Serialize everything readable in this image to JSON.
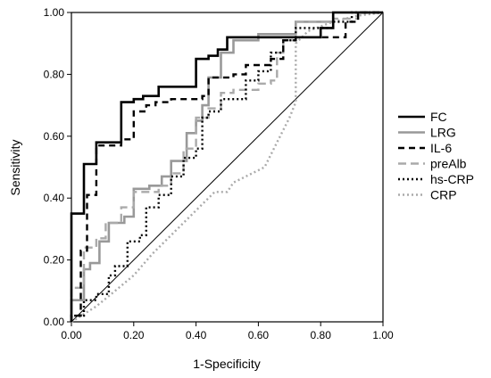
{
  "chart_data": {
    "type": "line",
    "title": "",
    "xlabel": "1-Specificity",
    "ylabel": "Sensitivity",
    "xlim": [
      0,
      1
    ],
    "ylim": [
      0,
      1
    ],
    "xticks": [
      "0.00",
      "0.20",
      "0.40",
      "0.60",
      "0.80",
      "1.00"
    ],
    "yticks": [
      "0.00",
      "0.20",
      "0.40",
      "0.60",
      "0.80",
      "1.00"
    ],
    "grid": false,
    "legend_position": "right",
    "reference_line": [
      [
        0,
        0
      ],
      [
        1,
        1
      ]
    ],
    "series": [
      {
        "name": "FC",
        "color": "#000000",
        "dash": "solid",
        "width": 2.6,
        "points": [
          [
            0,
            0
          ],
          [
            0,
            0.35
          ],
          [
            0.04,
            0.35
          ],
          [
            0.04,
            0.51
          ],
          [
            0.08,
            0.51
          ],
          [
            0.08,
            0.58
          ],
          [
            0.16,
            0.58
          ],
          [
            0.16,
            0.71
          ],
          [
            0.2,
            0.71
          ],
          [
            0.2,
            0.72
          ],
          [
            0.23,
            0.72
          ],
          [
            0.23,
            0.73
          ],
          [
            0.28,
            0.73
          ],
          [
            0.28,
            0.76
          ],
          [
            0.4,
            0.76
          ],
          [
            0.4,
            0.85
          ],
          [
            0.44,
            0.85
          ],
          [
            0.44,
            0.86
          ],
          [
            0.47,
            0.86
          ],
          [
            0.47,
            0.88
          ],
          [
            0.5,
            0.88
          ],
          [
            0.5,
            0.92
          ],
          [
            0.8,
            0.92
          ],
          [
            0.8,
            0.95
          ],
          [
            0.84,
            0.95
          ],
          [
            0.84,
            1.0
          ],
          [
            1,
            1
          ]
        ]
      },
      {
        "name": "LRG",
        "color": "#999999",
        "dash": "solid",
        "width": 2.6,
        "points": [
          [
            0,
            0
          ],
          [
            0,
            0.07
          ],
          [
            0.04,
            0.07
          ],
          [
            0.04,
            0.17
          ],
          [
            0.06,
            0.17
          ],
          [
            0.06,
            0.19
          ],
          [
            0.09,
            0.19
          ],
          [
            0.09,
            0.26
          ],
          [
            0.12,
            0.26
          ],
          [
            0.12,
            0.32
          ],
          [
            0.17,
            0.32
          ],
          [
            0.17,
            0.34
          ],
          [
            0.2,
            0.34
          ],
          [
            0.2,
            0.43
          ],
          [
            0.25,
            0.43
          ],
          [
            0.25,
            0.44
          ],
          [
            0.29,
            0.44
          ],
          [
            0.29,
            0.47
          ],
          [
            0.32,
            0.47
          ],
          [
            0.32,
            0.52
          ],
          [
            0.37,
            0.52
          ],
          [
            0.37,
            0.61
          ],
          [
            0.4,
            0.61
          ],
          [
            0.4,
            0.65
          ],
          [
            0.42,
            0.65
          ],
          [
            0.42,
            0.7
          ],
          [
            0.44,
            0.7
          ],
          [
            0.44,
            0.79
          ],
          [
            0.48,
            0.79
          ],
          [
            0.48,
            0.87
          ],
          [
            0.52,
            0.87
          ],
          [
            0.52,
            0.91
          ],
          [
            0.6,
            0.91
          ],
          [
            0.6,
            0.93
          ],
          [
            0.72,
            0.93
          ],
          [
            0.72,
            0.97
          ],
          [
            0.84,
            0.97
          ],
          [
            0.84,
            1.0
          ],
          [
            1,
            1
          ]
        ]
      },
      {
        "name": "IL-6",
        "color": "#000000",
        "dash": "7 5",
        "width": 2.4,
        "points": [
          [
            0,
            0
          ],
          [
            0,
            0.02
          ],
          [
            0.03,
            0.02
          ],
          [
            0.03,
            0.23
          ],
          [
            0.05,
            0.23
          ],
          [
            0.05,
            0.41
          ],
          [
            0.08,
            0.41
          ],
          [
            0.08,
            0.57
          ],
          [
            0.16,
            0.57
          ],
          [
            0.16,
            0.59
          ],
          [
            0.2,
            0.59
          ],
          [
            0.2,
            0.68
          ],
          [
            0.24,
            0.68
          ],
          [
            0.24,
            0.7
          ],
          [
            0.27,
            0.7
          ],
          [
            0.27,
            0.71
          ],
          [
            0.32,
            0.71
          ],
          [
            0.32,
            0.72
          ],
          [
            0.42,
            0.72
          ],
          [
            0.42,
            0.73
          ],
          [
            0.44,
            0.73
          ],
          [
            0.44,
            0.79
          ],
          [
            0.52,
            0.79
          ],
          [
            0.52,
            0.8
          ],
          [
            0.56,
            0.8
          ],
          [
            0.56,
            0.83
          ],
          [
            0.64,
            0.83
          ],
          [
            0.64,
            0.85
          ],
          [
            0.68,
            0.85
          ],
          [
            0.68,
            0.91
          ],
          [
            0.72,
            0.91
          ],
          [
            0.72,
            0.92
          ],
          [
            0.88,
            0.92
          ],
          [
            0.88,
            0.97
          ],
          [
            0.92,
            0.97
          ],
          [
            0.92,
            1.0
          ],
          [
            1,
            1
          ]
        ]
      },
      {
        "name": "preAlb",
        "color": "#aaaaaa",
        "dash": "9 5",
        "width": 2.4,
        "points": [
          [
            0,
            0
          ],
          [
            0,
            0.11
          ],
          [
            0.04,
            0.11
          ],
          [
            0.04,
            0.24
          ],
          [
            0.08,
            0.24
          ],
          [
            0.08,
            0.27
          ],
          [
            0.11,
            0.27
          ],
          [
            0.11,
            0.32
          ],
          [
            0.16,
            0.32
          ],
          [
            0.16,
            0.37
          ],
          [
            0.2,
            0.37
          ],
          [
            0.2,
            0.42
          ],
          [
            0.28,
            0.42
          ],
          [
            0.28,
            0.44
          ],
          [
            0.32,
            0.44
          ],
          [
            0.32,
            0.48
          ],
          [
            0.36,
            0.48
          ],
          [
            0.36,
            0.56
          ],
          [
            0.4,
            0.56
          ],
          [
            0.4,
            0.66
          ],
          [
            0.44,
            0.66
          ],
          [
            0.44,
            0.69
          ],
          [
            0.48,
            0.69
          ],
          [
            0.48,
            0.74
          ],
          [
            0.52,
            0.74
          ],
          [
            0.52,
            0.75
          ],
          [
            0.6,
            0.75
          ],
          [
            0.6,
            0.77
          ],
          [
            0.64,
            0.77
          ],
          [
            0.64,
            0.78
          ],
          [
            0.66,
            0.78
          ],
          [
            0.66,
            0.87
          ],
          [
            0.68,
            0.87
          ],
          [
            0.68,
            0.91
          ],
          [
            0.72,
            0.91
          ],
          [
            0.72,
            0.97
          ],
          [
            0.84,
            0.97
          ],
          [
            0.84,
            0.98
          ],
          [
            0.92,
            0.98
          ],
          [
            0.92,
            1.0
          ],
          [
            1,
            1
          ]
        ]
      },
      {
        "name": "hs-CRP",
        "color": "#000000",
        "dash": "2 3",
        "width": 2.4,
        "points": [
          [
            0,
            0
          ],
          [
            0,
            0.02
          ],
          [
            0.04,
            0.02
          ],
          [
            0.04,
            0.07
          ],
          [
            0.08,
            0.07
          ],
          [
            0.08,
            0.09
          ],
          [
            0.12,
            0.09
          ],
          [
            0.12,
            0.15
          ],
          [
            0.14,
            0.15
          ],
          [
            0.14,
            0.18
          ],
          [
            0.18,
            0.18
          ],
          [
            0.18,
            0.26
          ],
          [
            0.22,
            0.26
          ],
          [
            0.22,
            0.28
          ],
          [
            0.24,
            0.28
          ],
          [
            0.24,
            0.37
          ],
          [
            0.28,
            0.37
          ],
          [
            0.28,
            0.41
          ],
          [
            0.32,
            0.41
          ],
          [
            0.32,
            0.47
          ],
          [
            0.36,
            0.47
          ],
          [
            0.36,
            0.53
          ],
          [
            0.4,
            0.53
          ],
          [
            0.4,
            0.56
          ],
          [
            0.42,
            0.56
          ],
          [
            0.42,
            0.66
          ],
          [
            0.44,
            0.66
          ],
          [
            0.44,
            0.68
          ],
          [
            0.48,
            0.68
          ],
          [
            0.48,
            0.72
          ],
          [
            0.56,
            0.72
          ],
          [
            0.56,
            0.78
          ],
          [
            0.6,
            0.78
          ],
          [
            0.6,
            0.81
          ],
          [
            0.64,
            0.81
          ],
          [
            0.64,
            0.87
          ],
          [
            0.68,
            0.87
          ],
          [
            0.68,
            0.91
          ],
          [
            0.72,
            0.91
          ],
          [
            0.72,
            0.95
          ],
          [
            0.84,
            0.95
          ],
          [
            0.84,
            0.97
          ],
          [
            0.9,
            0.97
          ],
          [
            0.9,
            1.0
          ],
          [
            1,
            1
          ]
        ]
      },
      {
        "name": "CRP",
        "color": "#aaaaaa",
        "dash": "2 3",
        "width": 2.4,
        "points": [
          [
            0,
            0
          ],
          [
            0.08,
            0.05
          ],
          [
            0.14,
            0.1
          ],
          [
            0.2,
            0.15
          ],
          [
            0.26,
            0.22
          ],
          [
            0.32,
            0.28
          ],
          [
            0.38,
            0.34
          ],
          [
            0.42,
            0.38
          ],
          [
            0.46,
            0.42
          ],
          [
            0.5,
            0.42
          ],
          [
            0.52,
            0.45
          ],
          [
            0.56,
            0.47
          ],
          [
            0.6,
            0.49
          ],
          [
            0.62,
            0.5
          ],
          [
            0.66,
            0.58
          ],
          [
            0.7,
            0.66
          ],
          [
            0.72,
            0.71
          ],
          [
            0.72,
            0.9
          ],
          [
            0.76,
            0.94
          ],
          [
            0.84,
            0.97
          ],
          [
            0.92,
            0.99
          ],
          [
            1,
            1
          ]
        ]
      }
    ]
  }
}
